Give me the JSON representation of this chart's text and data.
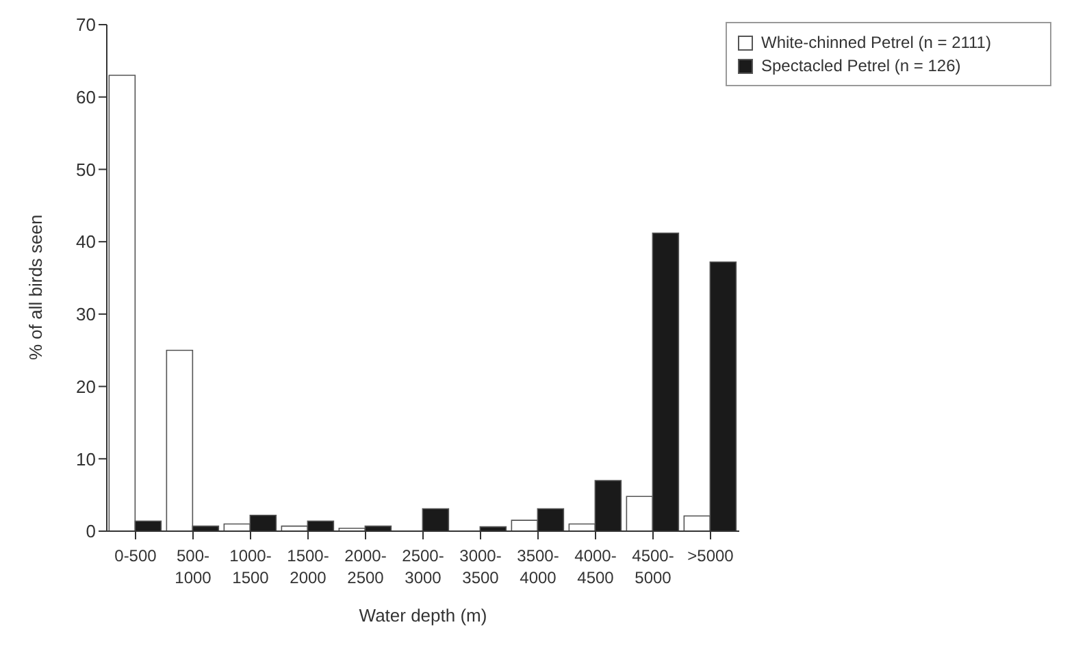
{
  "chart_data": {
    "type": "bar",
    "xlabel": "Water depth (m)",
    "ylabel": "% of all birds seen",
    "categories": [
      "0-500\n",
      "500-\n1000",
      "1000-\n1500",
      "1500-\n2000",
      "2000-\n2500",
      "2500-\n3000",
      "3000-\n3500",
      "3500-\n4000",
      "4000-\n4500",
      "4500-\n5000",
      ">5000\n"
    ],
    "series": [
      {
        "name": "White-chinned Petrel (n = 2111)",
        "color": "#ffffff",
        "values": [
          63,
          25,
          1.0,
          0.7,
          0.4,
          0,
          0,
          1.5,
          1.0,
          4.8,
          2.1
        ]
      },
      {
        "name": "Spectacled Petrel (n = 126)",
        "color": "#1a1a1a",
        "values": [
          1.4,
          0.7,
          2.2,
          1.4,
          0.7,
          3.1,
          0.6,
          3.1,
          7.0,
          41.2,
          37.2
        ]
      }
    ],
    "ylim": [
      0,
      70
    ],
    "yticks": [
      0,
      10,
      20,
      30,
      40,
      50,
      60,
      70
    ],
    "grid": false,
    "legend": "top right"
  }
}
